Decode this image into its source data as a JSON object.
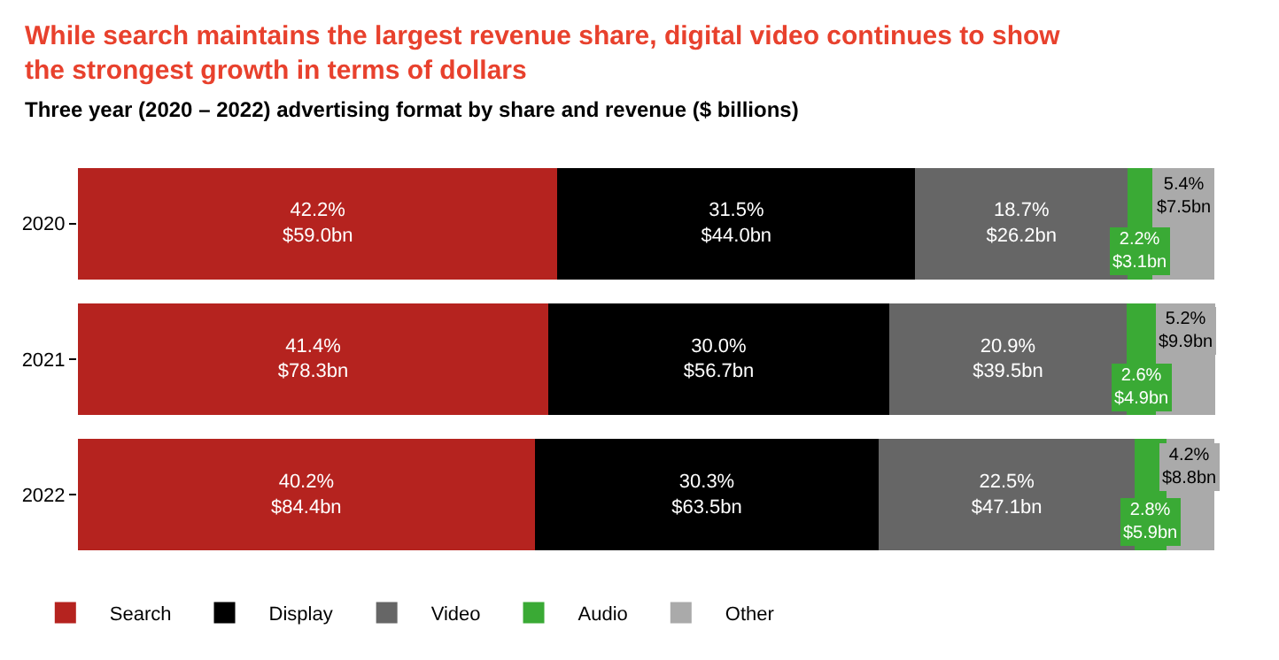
{
  "chart_data": {
    "type": "bar",
    "orientation": "horizontal",
    "stacked": true,
    "title": "While search maintains the largest revenue share, digital video continues to show the strongest growth in terms of dollars",
    "subtitle": "Three year (2020 – 2022) advertising format by share and revenue ($ billions)",
    "categories": [
      "2020",
      "2021",
      "2022"
    ],
    "xlim": [
      0,
      100.1
    ],
    "tick_labels": "y",
    "legend": "bottom left",
    "series": [
      {
        "name": "Search",
        "color": "#b5231f",
        "values": [
          42.2,
          41.4,
          40.2
        ],
        "value_labels": [
          "42.2%\n$59.0bn",
          "41.4%\n$78.3bn",
          "40.2%\n$84.4bn"
        ]
      },
      {
        "name": "Display",
        "color": "#000000",
        "values": [
          31.5,
          30.0,
          30.3
        ],
        "value_labels": [
          "31.5%\n$44.0bn",
          "30.0%\n$56.7bn",
          "30.3%\n$63.5bn"
        ]
      },
      {
        "name": "Video",
        "color": "#666666",
        "values": [
          18.7,
          20.9,
          22.5
        ],
        "value_labels": [
          "18.7%\n$26.2bn",
          "20.9%\n$39.5bn",
          "22.5%\n$47.1bn"
        ]
      },
      {
        "name": "Audio",
        "color": "#3aaa35",
        "values": [
          2.2,
          2.6,
          2.8
        ],
        "value_labels": [
          "2.2%\n$3.1bn",
          "2.6%\n$4.9bn",
          "2.8%\n$5.9bn"
        ]
      },
      {
        "name": "Other",
        "color": "#aaaaaa",
        "values": [
          5.4,
          5.2,
          4.2
        ],
        "value_labels": [
          "5.4%\n$7.5bn",
          "5.2%\n$9.9bn",
          "4.2%\n$8.8bn"
        ]
      }
    ]
  }
}
